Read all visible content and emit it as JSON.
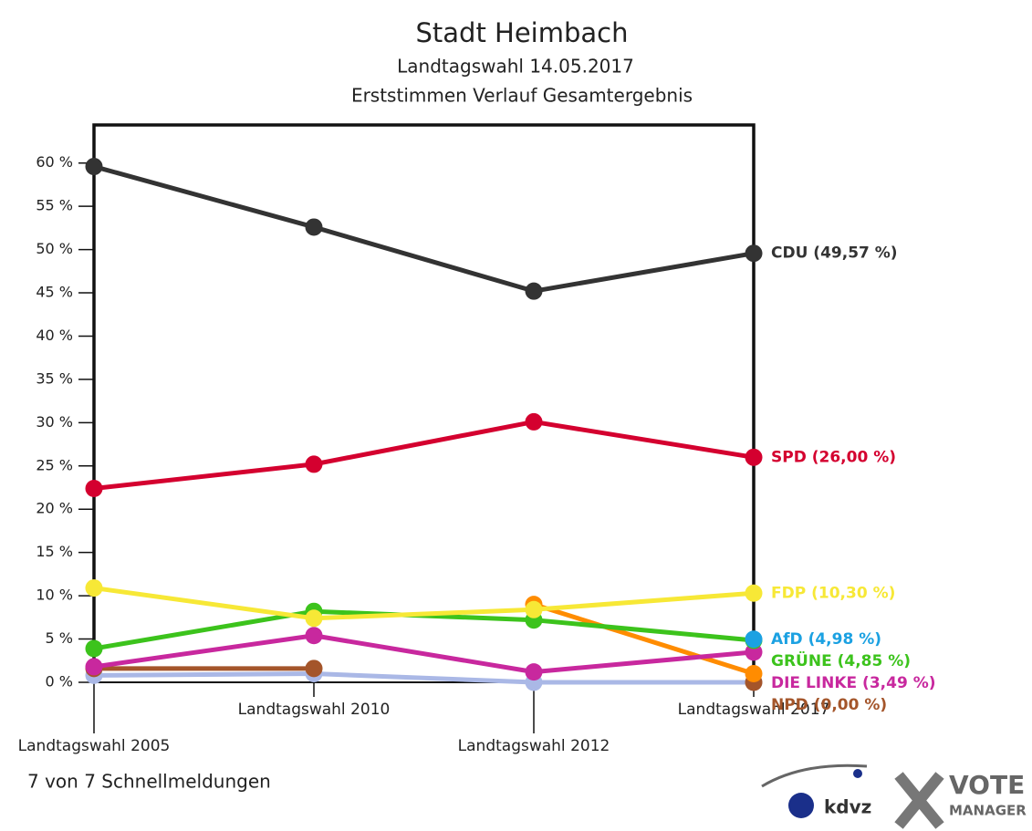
{
  "chart_data": {
    "type": "line",
    "title": "Stadt Heimbach",
    "subtitle": "Landtagswahl 14.05.2017",
    "subtitle2": "Erststimmen Verlauf Gesamtergebnis",
    "footer": "7 von 7 Schnellmeldungen",
    "logo_left": "kdvz",
    "logo_right": "VOTE",
    "logo_right_sub": "MANAGER",
    "categories": [
      "Landtagswahl 2005",
      "Landtagswahl 2010",
      "Landtagswahl 2012",
      "Landtagswahl 2017"
    ],
    "ylim": [
      0,
      64.4
    ],
    "yticks": [
      {
        "value": 0,
        "label": "0 %"
      },
      {
        "value": 5,
        "label": "5 %"
      },
      {
        "value": 10,
        "label": "10 %"
      },
      {
        "value": 15,
        "label": "15 %"
      },
      {
        "value": 20,
        "label": "20 %"
      },
      {
        "value": 25,
        "label": "25 %"
      },
      {
        "value": 30,
        "label": "30 %"
      },
      {
        "value": 35,
        "label": "35 %"
      },
      {
        "value": 40,
        "label": "40 %"
      },
      {
        "value": 45,
        "label": "45 %"
      },
      {
        "value": 50,
        "label": "50 %"
      },
      {
        "value": 55,
        "label": "55 %"
      },
      {
        "value": 60,
        "label": "60 %"
      }
    ],
    "series": [
      {
        "color": "#aab8e6",
        "values": [
          0.8,
          1.0,
          0,
          0
        ]
      },
      {
        "name": "NPD",
        "label": "NPD (0,00 %)",
        "color": "#a4552a",
        "values": [
          1.6,
          1.6,
          null,
          0
        ]
      },
      {
        "color": "#ff8c00",
        "values": [
          null,
          null,
          9.0,
          1.0
        ]
      },
      {
        "name": "DIE LINKE",
        "label": "DIE LINKE (3,49 %)",
        "color": "#c8289e",
        "values": [
          1.8,
          5.4,
          1.2,
          3.49
        ]
      },
      {
        "name": "GRÜNE",
        "label": "GRÜNE (4,85 %)",
        "color": "#3cc31c",
        "values": [
          3.9,
          8.2,
          7.2,
          4.85
        ]
      },
      {
        "name": "AfD",
        "label": "AfD (4,98 %)",
        "color": "#1ba1e2",
        "values": [
          null,
          null,
          null,
          4.98
        ]
      },
      {
        "name": "FDP",
        "label": "FDP (10,30 %)",
        "color": "#f7e836",
        "values": [
          10.9,
          7.4,
          8.4,
          10.3
        ]
      },
      {
        "name": "SPD",
        "label": "SPD (26,00 %)",
        "color": "#d4002f",
        "values": [
          22.4,
          25.2,
          30.1,
          26.0
        ]
      },
      {
        "name": "CDU",
        "label": "CDU (49,57 %)",
        "color": "#333333",
        "values": [
          59.6,
          52.6,
          45.2,
          49.57
        ]
      }
    ]
  }
}
